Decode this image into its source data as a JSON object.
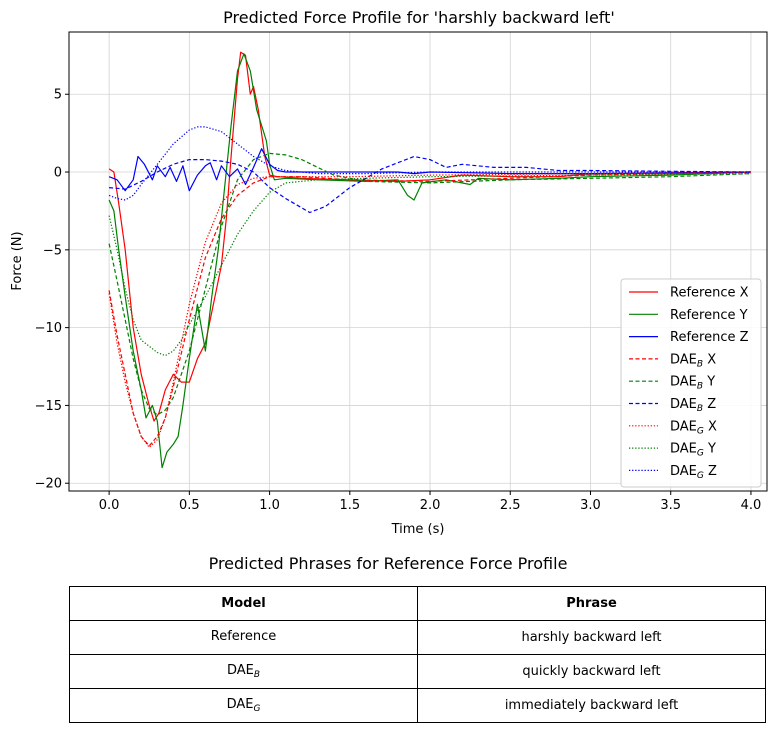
{
  "chart_data": {
    "type": "line",
    "title": "Predicted Force Profile for 'harshly backward left'",
    "xlabel": "Time (s)",
    "ylabel": "Force (N)",
    "xlim": [
      -0.25,
      4.1
    ],
    "ylim": [
      -20.5,
      9.0
    ],
    "xticks": [
      0.0,
      0.5,
      1.0,
      1.5,
      2.0,
      2.5,
      3.0,
      3.5,
      4.0
    ],
    "xtick_labels": [
      "0.0",
      "0.5",
      "1.0",
      "1.5",
      "2.0",
      "2.5",
      "3.0",
      "3.5",
      "4.0"
    ],
    "yticks": [
      5,
      0,
      -5,
      -10,
      -15,
      -20
    ],
    "ytick_labels": [
      "5",
      "0",
      "−5",
      "−10",
      "−15",
      "−20"
    ],
    "grid": true,
    "legend_position": "bottom-right",
    "series": [
      {
        "name": "Reference X",
        "base": "Reference",
        "axis": "X",
        "color": "#ff0000",
        "dash": "solid",
        "points": [
          [
            0,
            0.2
          ],
          [
            0.03,
            0
          ],
          [
            0.06,
            -2
          ],
          [
            0.1,
            -5
          ],
          [
            0.15,
            -10
          ],
          [
            0.2,
            -13
          ],
          [
            0.25,
            -15
          ],
          [
            0.28,
            -16
          ],
          [
            0.31,
            -15.5
          ],
          [
            0.35,
            -14
          ],
          [
            0.4,
            -13
          ],
          [
            0.45,
            -13.5
          ],
          [
            0.5,
            -13.5
          ],
          [
            0.55,
            -12
          ],
          [
            0.6,
            -11
          ],
          [
            0.65,
            -8.5
          ],
          [
            0.7,
            -6
          ],
          [
            0.73,
            -3
          ],
          [
            0.76,
            1
          ],
          [
            0.8,
            6
          ],
          [
            0.82,
            7.7
          ],
          [
            0.85,
            7.5
          ],
          [
            0.88,
            5
          ],
          [
            0.9,
            5.5
          ],
          [
            0.93,
            4
          ],
          [
            0.97,
            1
          ],
          [
            1.0,
            -0.2
          ],
          [
            1.05,
            -0.3
          ],
          [
            1.2,
            -0.4
          ],
          [
            1.5,
            -0.5
          ],
          [
            1.8,
            -0.6
          ],
          [
            2.0,
            -0.5
          ],
          [
            2.2,
            -0.2
          ],
          [
            2.5,
            -0.3
          ],
          [
            2.8,
            -0.3
          ],
          [
            3.0,
            -0.1
          ],
          [
            3.5,
            -0.1
          ],
          [
            4.0,
            0
          ]
        ]
      },
      {
        "name": "Reference Y",
        "base": "Reference",
        "axis": "Y",
        "color": "#008000",
        "dash": "solid",
        "points": [
          [
            0,
            -1.8
          ],
          [
            0.03,
            -2.5
          ],
          [
            0.06,
            -5
          ],
          [
            0.1,
            -8
          ],
          [
            0.15,
            -11.5
          ],
          [
            0.2,
            -14
          ],
          [
            0.23,
            -15.8
          ],
          [
            0.27,
            -15
          ],
          [
            0.3,
            -16
          ],
          [
            0.33,
            -19
          ],
          [
            0.36,
            -18
          ],
          [
            0.4,
            -17.5
          ],
          [
            0.43,
            -17
          ],
          [
            0.46,
            -15
          ],
          [
            0.5,
            -12
          ],
          [
            0.55,
            -8.5
          ],
          [
            0.6,
            -11.5
          ],
          [
            0.64,
            -8
          ],
          [
            0.68,
            -5
          ],
          [
            0.72,
            -1
          ],
          [
            0.76,
            3
          ],
          [
            0.8,
            6.5
          ],
          [
            0.84,
            7.6
          ],
          [
            0.88,
            6.5
          ],
          [
            0.92,
            4
          ],
          [
            0.95,
            3
          ],
          [
            0.98,
            2
          ],
          [
            1.0,
            0.5
          ],
          [
            1.03,
            -0.5
          ],
          [
            1.1,
            -0.4
          ],
          [
            1.3,
            -0.5
          ],
          [
            1.6,
            -0.6
          ],
          [
            1.8,
            -0.5
          ],
          [
            1.86,
            -1.5
          ],
          [
            1.9,
            -1.8
          ],
          [
            1.95,
            -0.7
          ],
          [
            2.1,
            -0.5
          ],
          [
            2.25,
            -0.8
          ],
          [
            2.3,
            -0.4
          ],
          [
            2.5,
            -0.5
          ],
          [
            2.8,
            -0.4
          ],
          [
            3.0,
            -0.3
          ],
          [
            3.5,
            -0.2
          ],
          [
            4.0,
            0
          ]
        ]
      },
      {
        "name": "Reference Z",
        "base": "Reference",
        "axis": "Z",
        "color": "#0000ff",
        "dash": "solid",
        "points": [
          [
            0,
            -0.3
          ],
          [
            0.05,
            -0.5
          ],
          [
            0.1,
            -1.2
          ],
          [
            0.15,
            -0.5
          ],
          [
            0.18,
            1.0
          ],
          [
            0.22,
            0.5
          ],
          [
            0.27,
            -0.5
          ],
          [
            0.3,
            0.4
          ],
          [
            0.35,
            -0.3
          ],
          [
            0.38,
            0.3
          ],
          [
            0.42,
            -0.6
          ],
          [
            0.46,
            0.4
          ],
          [
            0.5,
            -1.2
          ],
          [
            0.55,
            -0.2
          ],
          [
            0.6,
            0.4
          ],
          [
            0.63,
            0.6
          ],
          [
            0.67,
            -0.5
          ],
          [
            0.7,
            0.4
          ],
          [
            0.75,
            -0.3
          ],
          [
            0.8,
            0.2
          ],
          [
            0.85,
            -0.8
          ],
          [
            0.9,
            0.3
          ],
          [
            0.95,
            1.5
          ],
          [
            1.0,
            0.5
          ],
          [
            1.05,
            0.1
          ],
          [
            1.1,
            0
          ],
          [
            1.8,
            0
          ],
          [
            1.9,
            -0.1
          ],
          [
            2.0,
            0
          ],
          [
            2.5,
            -0.1
          ],
          [
            3.0,
            -0.1
          ],
          [
            4.0,
            0
          ]
        ]
      },
      {
        "name": "DAE_B X",
        "base": "DAE",
        "sub": "B",
        "axis": "X",
        "color": "#ff0000",
        "dash": "dashed",
        "points": [
          [
            0,
            -7.6
          ],
          [
            0.05,
            -10.5
          ],
          [
            0.1,
            -13
          ],
          [
            0.15,
            -15.5
          ],
          [
            0.2,
            -17
          ],
          [
            0.25,
            -17.6
          ],
          [
            0.3,
            -17
          ],
          [
            0.35,
            -15.8
          ],
          [
            0.4,
            -13.8
          ],
          [
            0.5,
            -9.5
          ],
          [
            0.6,
            -5.5
          ],
          [
            0.7,
            -3
          ],
          [
            0.8,
            -1.5
          ],
          [
            0.9,
            -0.7
          ],
          [
            1.0,
            -0.3
          ],
          [
            1.2,
            -0.3
          ],
          [
            1.5,
            -0.5
          ],
          [
            2.0,
            -0.6
          ],
          [
            2.5,
            -0.4
          ],
          [
            3.0,
            -0.2
          ],
          [
            4.0,
            0
          ]
        ]
      },
      {
        "name": "DAE_B Y",
        "base": "DAE",
        "sub": "B",
        "axis": "Y",
        "color": "#008000",
        "dash": "dashed",
        "points": [
          [
            0,
            -4.6
          ],
          [
            0.05,
            -7
          ],
          [
            0.1,
            -9.5
          ],
          [
            0.15,
            -12
          ],
          [
            0.2,
            -14
          ],
          [
            0.25,
            -15.2
          ],
          [
            0.3,
            -15.6
          ],
          [
            0.35,
            -15.3
          ],
          [
            0.4,
            -14.5
          ],
          [
            0.5,
            -11.5
          ],
          [
            0.6,
            -7.5
          ],
          [
            0.7,
            -3.5
          ],
          [
            0.8,
            -0.5
          ],
          [
            0.9,
            0.8
          ],
          [
            1.0,
            1.2
          ],
          [
            1.1,
            1.1
          ],
          [
            1.2,
            0.8
          ],
          [
            1.3,
            0.3
          ],
          [
            1.4,
            -0.2
          ],
          [
            1.6,
            -0.6
          ],
          [
            2.0,
            -0.7
          ],
          [
            2.5,
            -0.5
          ],
          [
            3.0,
            -0.4
          ],
          [
            3.5,
            -0.3
          ],
          [
            4.0,
            -0.1
          ]
        ]
      },
      {
        "name": "DAE_B Z",
        "base": "DAE",
        "sub": "B",
        "axis": "Z",
        "color": "#0000ff",
        "dash": "dashed",
        "points": [
          [
            0,
            -1
          ],
          [
            0.1,
            -1.1
          ],
          [
            0.2,
            -0.6
          ],
          [
            0.3,
            0
          ],
          [
            0.4,
            0.5
          ],
          [
            0.5,
            0.8
          ],
          [
            0.6,
            0.8
          ],
          [
            0.7,
            0.7
          ],
          [
            0.8,
            0.5
          ],
          [
            0.9,
            0
          ],
          [
            1.0,
            -1
          ],
          [
            1.1,
            -1.7
          ],
          [
            1.2,
            -2.3
          ],
          [
            1.25,
            -2.6
          ],
          [
            1.35,
            -2.2
          ],
          [
            1.5,
            -1
          ],
          [
            1.6,
            -0.4
          ],
          [
            1.7,
            0.2
          ],
          [
            1.8,
            0.6
          ],
          [
            1.9,
            1.0
          ],
          [
            2.0,
            0.8
          ],
          [
            2.1,
            0.3
          ],
          [
            2.2,
            0.5
          ],
          [
            2.4,
            0.3
          ],
          [
            2.6,
            0.3
          ],
          [
            2.8,
            0.1
          ],
          [
            3.0,
            0.1
          ],
          [
            3.5,
            0.05
          ],
          [
            4.0,
            0
          ]
        ]
      },
      {
        "name": "DAE_G X",
        "base": "DAE",
        "sub": "G",
        "axis": "X",
        "color": "#ff0000",
        "dash": "dotted",
        "points": [
          [
            0,
            -7.8
          ],
          [
            0.05,
            -11
          ],
          [
            0.1,
            -13.5
          ],
          [
            0.15,
            -15.5
          ],
          [
            0.2,
            -17
          ],
          [
            0.25,
            -17.7
          ],
          [
            0.3,
            -17.2
          ],
          [
            0.35,
            -15.8
          ],
          [
            0.4,
            -13.5
          ],
          [
            0.5,
            -8.5
          ],
          [
            0.6,
            -4.5
          ],
          [
            0.7,
            -2
          ],
          [
            0.8,
            -0.8
          ],
          [
            0.9,
            -0.4
          ],
          [
            1.0,
            -0.3
          ],
          [
            1.2,
            -0.3
          ],
          [
            1.5,
            -0.3
          ],
          [
            2.0,
            -0.2
          ],
          [
            3.0,
            -0.1
          ],
          [
            4.0,
            0
          ]
        ]
      },
      {
        "name": "DAE_G Y",
        "base": "DAE",
        "sub": "G",
        "axis": "Y",
        "color": "#008000",
        "dash": "dotted",
        "points": [
          [
            0,
            -2.8
          ],
          [
            0.05,
            -5
          ],
          [
            0.1,
            -7.5
          ],
          [
            0.15,
            -9.5
          ],
          [
            0.2,
            -10.8
          ],
          [
            0.3,
            -11.6
          ],
          [
            0.35,
            -11.8
          ],
          [
            0.4,
            -11.5
          ],
          [
            0.45,
            -10.8
          ],
          [
            0.5,
            -9.8
          ],
          [
            0.6,
            -8
          ],
          [
            0.7,
            -6
          ],
          [
            0.8,
            -4
          ],
          [
            0.9,
            -2.5
          ],
          [
            1.0,
            -1.3
          ],
          [
            1.1,
            -0.7
          ],
          [
            1.3,
            -0.5
          ],
          [
            1.6,
            -0.4
          ],
          [
            2.0,
            -0.3
          ],
          [
            3.0,
            -0.2
          ],
          [
            4.0,
            -0.1
          ]
        ]
      },
      {
        "name": "DAE_G Z",
        "base": "DAE",
        "sub": "G",
        "axis": "Z",
        "color": "#0000ff",
        "dash": "dotted",
        "points": [
          [
            0,
            -1.5
          ],
          [
            0.05,
            -1.7
          ],
          [
            0.1,
            -1.8
          ],
          [
            0.15,
            -1.5
          ],
          [
            0.2,
            -0.8
          ],
          [
            0.3,
            0.5
          ],
          [
            0.4,
            1.8
          ],
          [
            0.5,
            2.7
          ],
          [
            0.55,
            2.9
          ],
          [
            0.6,
            2.9
          ],
          [
            0.7,
            2.6
          ],
          [
            0.8,
            1.8
          ],
          [
            0.9,
            1.0
          ],
          [
            1.0,
            0.4
          ],
          [
            1.1,
            0.1
          ],
          [
            1.3,
            -0.1
          ],
          [
            1.6,
            -0.1
          ],
          [
            2.0,
            0
          ],
          [
            3.0,
            0
          ],
          [
            4.0,
            0
          ]
        ]
      }
    ]
  },
  "table": {
    "title": "Predicted Phrases for Reference Force Profile",
    "headers": {
      "model": "Model",
      "phrase": "Phrase"
    },
    "rows": [
      {
        "model": "Reference",
        "model_sub": "",
        "phrase": "harshly backward left"
      },
      {
        "model": "DAE",
        "model_sub": "B",
        "phrase": "quickly backward left"
      },
      {
        "model": "DAE",
        "model_sub": "G",
        "phrase": "immediately backward left"
      }
    ]
  }
}
